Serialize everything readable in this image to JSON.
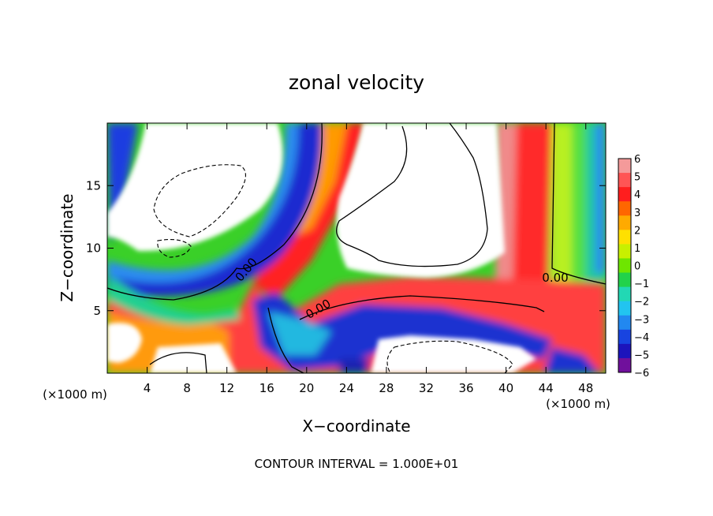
{
  "chart_data": {
    "type": "heatmap",
    "title": "zonal velocity",
    "xlabel": "X−coordinate",
    "ylabel": "Z−coordinate",
    "x_unit_left": "(×1000 m)",
    "x_unit_right": "(×1000 m)",
    "footer": "CONTOUR INTERVAL = 1.000E+01",
    "xlim": [
      0,
      50
    ],
    "ylim": [
      0,
      20
    ],
    "x_ticks": [
      4,
      8,
      12,
      16,
      20,
      24,
      28,
      32,
      36,
      40,
      44,
      48
    ],
    "x_tick_labels": [
      "4",
      "8",
      "12",
      "16",
      "20",
      "24",
      "28",
      "32",
      "36",
      "40",
      "44",
      "48"
    ],
    "y_ticks": [
      5,
      10,
      15
    ],
    "y_tick_labels": [
      "5",
      "10",
      "15"
    ],
    "colorbar": {
      "min": -6,
      "max": 6,
      "ticks": [
        6,
        5,
        4,
        3,
        2,
        1,
        0,
        -1,
        -2,
        -3,
        -4,
        -5,
        -6
      ],
      "tick_labels": [
        "6",
        "5",
        "4",
        "3",
        "2",
        "1",
        "0",
        "−1",
        "−2",
        "−3",
        "−4",
        "−5",
        "−6"
      ],
      "colors": [
        "#f49a9a",
        "#ff5555",
        "#ff1e1e",
        "#ff6600",
        "#ffaa00",
        "#ffe000",
        "#c8f000",
        "#6ee600",
        "#22d24a",
        "#22d8b4",
        "#22c4f0",
        "#2288f0",
        "#1844e0",
        "#1c14bc",
        "#70109c"
      ]
    },
    "contour_labels": [
      {
        "text": "0.00",
        "x": 14.3,
        "z": 8.5,
        "rotate": -50
      },
      {
        "text": "0.00",
        "x": 22.0,
        "z": 4.8,
        "rotate": -30
      },
      {
        "text": "0.00",
        "x": 44.2,
        "z": 7.6,
        "rotate": 0
      }
    ],
    "white_regions": [
      {
        "name": "upper-left-plume",
        "x_range": [
          1.5,
          19
        ],
        "z_range": [
          8,
          20
        ]
      },
      {
        "name": "upper-center-plume",
        "x_range": [
          21,
          40
        ],
        "z_range": [
          8,
          20
        ]
      },
      {
        "name": "lower-left-patch",
        "x_range": [
          1,
          12
        ],
        "z_range": [
          0,
          3
        ]
      },
      {
        "name": "lower-center-cavity",
        "x_range": [
          25,
          43
        ],
        "z_range": [
          0,
          2.8
        ]
      }
    ]
  }
}
